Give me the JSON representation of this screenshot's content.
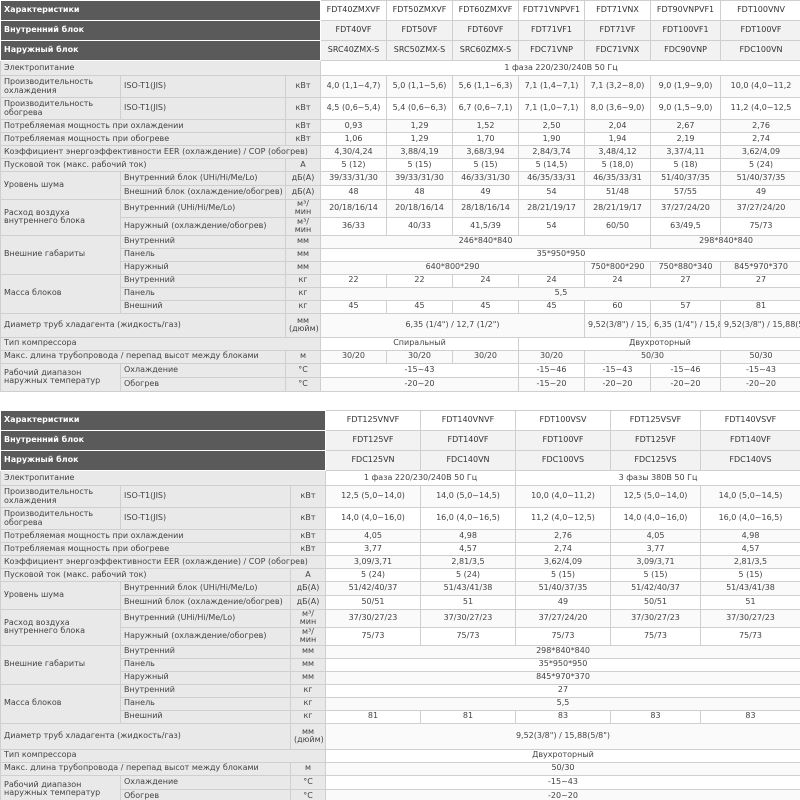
{
  "tables": [
    {
      "header_rows": [
        [
          "Характеристики",
          "FDT40ZMXVF",
          "FDT50ZMXVF",
          "FDT60ZMXVF",
          "FDT71VNPVF1",
          "FDT71VNX",
          "FDT90VNPVF1",
          "FDT100VNV"
        ],
        [
          "Внутренний блок",
          "FDT40VF",
          "FDT50VF",
          "FDT60VF",
          "FDT71VF1",
          "FDT71VF",
          "FDT100VF1",
          "FDT100VF"
        ],
        [
          "Наружный блок",
          "SRC40ZMX-S",
          "SRC50ZMX-S",
          "SRC60ZMX-S",
          "FDC71VNP",
          "FDC71VNX",
          "FDC90VNP",
          "FDC100VN"
        ]
      ],
      "rows": [
        {
          "label": "Электропитание",
          "values": [
            "1 фаза 220/230/240В 50 Гц"
          ]
        },
        {
          "label": "Производительность охлаждения",
          "sublabel": "ISO-T1(JIS)",
          "unit": "кВт",
          "values": [
            "4,0 (1,1~4,7)",
            "5,0 (1,1~5,6)",
            "5,6 (1,1~6,3)",
            "7,1 (1,4~7,1)",
            "7,1 (3,2~8,0)",
            "9,0 (1,9~9,0)",
            "10,0 (4,0~11,2"
          ]
        },
        {
          "label": "Производительность обогрева",
          "sublabel": "ISO-T1(JIS)",
          "unit": "кВт",
          "values": [
            "4,5 (0,6~5,4)",
            "5,4 (0,6~6,3)",
            "6,7 (0,6~7,1)",
            "7,1 (1,0~7,1)",
            "8,0 (3,6~9,0)",
            "9,0 (1,5~9,0)",
            "11,2 (4,0~12,5"
          ]
        },
        {
          "label": "Потребляемая мощность при охлаждении",
          "unit": "кВт",
          "values": [
            "0,93",
            "1,29",
            "1,52",
            "2,50",
            "2,04",
            "2,67",
            "2,76"
          ]
        },
        {
          "label": "Потребляемая мощность при обогреве",
          "unit": "кВт",
          "values": [
            "1,06",
            "1,29",
            "1,70",
            "1,90",
            "1,94",
            "2,19",
            "2,74"
          ]
        },
        {
          "label": "Коэффициент энергоэффективности EER (охлаждение) / COP (обогрев)",
          "values": [
            "4,30/4,24",
            "3,88/4,19",
            "3,68/3,94",
            "2,84/3,74",
            "3,48/4,12",
            "3,37/4,11",
            "3,62/4,09"
          ]
        },
        {
          "label": "Пусковой ток (макс. рабочий ток)",
          "unit": "А",
          "values": [
            "5 (12)",
            "5 (15)",
            "5 (15)",
            "5 (14,5)",
            "5 (18,0)",
            "5 (18)",
            "5 (24)"
          ]
        },
        {
          "label": "Уровень шума",
          "sublabel": "Внутренний блок (UHi/Hi/Me/Lo)",
          "unit": "дБ(А)",
          "values": [
            "39/33/31/30",
            "39/33/31/30",
            "46/33/31/30",
            "46/35/33/31",
            "46/35/33/31",
            "51/40/37/35",
            "51/40/37/35"
          ]
        },
        {
          "sublabel": "Внешний блок (охлаждение/обогрев)",
          "unit": "дБ(А)",
          "values": [
            "48",
            "48",
            "49",
            "54",
            "51/48",
            "57/55",
            "49"
          ]
        },
        {
          "label": "Расход воздуха внутреннего блока",
          "sublabel": "Внутренний (UHi/Hi/Me/Lo)",
          "unit": "м³/мин",
          "values": [
            "20/18/16/14",
            "20/18/16/14",
            "28/18/16/14",
            "28/21/19/17",
            "28/21/19/17",
            "37/27/24/20",
            "37/27/24/20"
          ]
        },
        {
          "sublabel": "Наружный (охлаждение/обогрев)",
          "unit": "м³/мин",
          "values": [
            "36/33",
            "40/33",
            "41,5/39",
            "54",
            "60/50",
            "63/49,5",
            "75/73"
          ]
        },
        {
          "label": "Внешние габариты",
          "sublabel": "Внутренний",
          "unit": "мм",
          "values": [
            "246*840*840",
            "298*840*840"
          ]
        },
        {
          "sublabel": "Панель",
          "unit": "мм",
          "values": [
            "35*950*950"
          ]
        },
        {
          "sublabel": "Наружный",
          "unit": "мм",
          "values": [
            "640*800*290",
            "750*800*290",
            "750*880*340",
            "845*970*370"
          ]
        },
        {
          "label": "Масса блоков",
          "sublabel": "Внутренний",
          "unit": "кг",
          "values": [
            "22",
            "22",
            "24",
            "24",
            "24",
            "27",
            "27"
          ]
        },
        {
          "sublabel": "Панель",
          "unit": "кг",
          "values": [
            "5,5"
          ]
        },
        {
          "sublabel": "Внешний",
          "unit": "кг",
          "values": [
            "45",
            "45",
            "45",
            "45",
            "60",
            "57",
            "81"
          ]
        },
        {
          "label": "Диаметр труб хладагента (жидкость/газ)",
          "unit": "мм (дюйм)",
          "values": [
            "6,35 (1/4\") / 12,7 (1/2\")",
            "9,52(3/8\") / 15,88(5/8\")",
            "6,35 (1/4\") / 15,88 (5/8\")",
            "9,52(3/8\") / 15,88(5/8\")"
          ]
        },
        {
          "label": "Тип компрессора",
          "values": [
            "Спиральный",
            "Двухроторный"
          ]
        },
        {
          "label": "Макс. длина трубопровода / перепад высот между блоками",
          "unit": "м",
          "values": [
            "30/20",
            "30/20",
            "30/20",
            "30/20",
            "50/30",
            "50/30"
          ]
        },
        {
          "label": "Рабочий диапазон наружных температур",
          "sublabel": "Охлаждение",
          "unit": "°С",
          "values": [
            "-15~43",
            "-15~46",
            "-15~43",
            "-15~46",
            "-15~43"
          ]
        },
        {
          "sublabel": "Обогрев",
          "unit": "°С",
          "values": [
            "-20~20",
            "-15~20",
            "-20~20",
            "-20~20",
            "-20~20"
          ]
        }
      ]
    },
    {
      "header_rows": [
        [
          "Характеристики",
          "FDT125VNVF",
          "FDT140VNVF",
          "FDT100VSV",
          "FDT125VSVF",
          "FDT140VSVF"
        ],
        [
          "Внутренний блок",
          "FDT125VF",
          "FDT140VF",
          "FDT100VF",
          "FDT125VF",
          "FDT140VF"
        ],
        [
          "Наружный блок",
          "FDC125VN",
          "FDC140VN",
          "FDC100VS",
          "FDC125VS",
          "FDC140VS"
        ]
      ],
      "rows": [
        {
          "label": "Электропитание",
          "values": [
            "1 фаза 220/230/240В 50 Гц",
            "3 фазы 380В 50 Гц"
          ]
        },
        {
          "label": "Производительность охлаждения",
          "sublabel": "ISO-T1(JIS)",
          "unit": "кВт",
          "values": [
            "12,5 (5,0~14,0)",
            "14,0 (5,0~14,5)",
            "10,0 (4,0~11,2)",
            "12,5 (5,0~14,0)",
            "14,0 (5,0~14,5)"
          ]
        },
        {
          "label": "Производительность обогрева",
          "sublabel": "ISO-T1(JIS)",
          "unit": "кВт",
          "values": [
            "14,0 (4,0~16,0)",
            "16,0 (4,0~16,5)",
            "11,2 (4,0~12,5)",
            "14,0 (4,0~16,0)",
            "16,0 (4,0~16,5)"
          ]
        },
        {
          "label": "Потребляемая мощность при охлаждении",
          "unit": "кВт",
          "values": [
            "4,05",
            "4,98",
            "2,76",
            "4,05",
            "4,98"
          ]
        },
        {
          "label": "Потребляемая мощность при обогреве",
          "unit": "кВт",
          "values": [
            "3,77",
            "4,57",
            "2,74",
            "3,77",
            "4,57"
          ]
        },
        {
          "label": "Коэффициент энергоэффективности EER (охлаждение) / COP (обогрев)",
          "values": [
            "3,09/3,71",
            "2,81/3,5",
            "3,62/4,09",
            "3,09/3,71",
            "2,81/3,5"
          ]
        },
        {
          "label": "Пусковой ток (макс. рабочий ток)",
          "unit": "А",
          "values": [
            "5 (24)",
            "5 (24)",
            "5 (15)",
            "5 (15)",
            "5 (15)"
          ]
        },
        {
          "label": "Уровень шума",
          "sublabel": "Внутренний блок (UHi/Hi/Me/Lo)",
          "unit": "дБ(А)",
          "values": [
            "51/42/40/37",
            "51/43/41/38",
            "51/40/37/35",
            "51/42/40/37",
            "51/43/41/38"
          ]
        },
        {
          "sublabel": "Внешний блок (охлаждение/обогрев)",
          "unit": "дБ(А)",
          "values": [
            "50/51",
            "51",
            "49",
            "50/51",
            "51"
          ]
        },
        {
          "label": "Расход воздуха внутреннего блока",
          "sublabel": "Внутренний (UHi/Hi/Me/Lo)",
          "unit": "м³/мин",
          "values": [
            "37/30/27/23",
            "37/30/27/23",
            "37/27/24/20",
            "37/30/27/23",
            "37/30/27/23"
          ]
        },
        {
          "sublabel": "Наружный (охлаждение/обогрев)",
          "unit": "м³/мин",
          "values": [
            "75/73",
            "75/73",
            "75/73",
            "75/73",
            "75/73"
          ]
        },
        {
          "label": "Внешние габариты",
          "sublabel": "Внутренний",
          "unit": "мм",
          "values": [
            "298*840*840"
          ]
        },
        {
          "sublabel": "Панель",
          "unit": "мм",
          "values": [
            "35*950*950"
          ]
        },
        {
          "sublabel": "Наружный",
          "unit": "мм",
          "values": [
            "845*970*370"
          ]
        },
        {
          "label": "Масса блоков",
          "sublabel": "Внутренний",
          "unit": "кг",
          "values": [
            "27"
          ]
        },
        {
          "sublabel": "Панель",
          "unit": "кг",
          "values": [
            "5,5"
          ]
        },
        {
          "sublabel": "Внешний",
          "unit": "кг",
          "values": [
            "81",
            "81",
            "83",
            "83",
            "83"
          ]
        },
        {
          "label": "Диаметр труб хладагента (жидкость/газ)",
          "unit": "мм (дюйм)",
          "values": [
            "9,52(3/8\") / 15,88(5/8\")"
          ]
        },
        {
          "label": "Тип компрессора",
          "values": [
            "Двухроторный"
          ]
        },
        {
          "label": "Макс. длина трубопровода / перепад высот между блоками",
          "unit": "м",
          "values": [
            "50/30"
          ]
        },
        {
          "label": "Рабочий диапазон наружных температур",
          "sublabel": "Охлаждение",
          "unit": "°С",
          "values": [
            "-15~43"
          ]
        },
        {
          "sublabel": "Обогрев",
          "unit": "°С",
          "values": [
            "-20~20"
          ]
        }
      ]
    }
  ]
}
